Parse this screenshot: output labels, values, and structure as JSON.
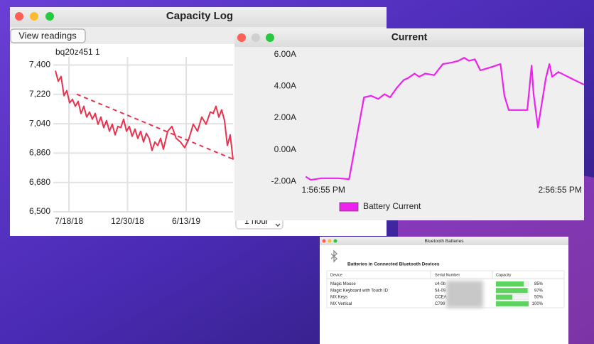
{
  "capacity_log": {
    "title": "Capacity Log",
    "button": "View readings",
    "popup": "1 hour",
    "chart_data": {
      "type": "line",
      "series": [
        {
          "name": "bq20z451 1",
          "color": "#e8334f",
          "x": [
            -38,
            -30,
            -22,
            -14,
            -6,
            2,
            10,
            18,
            26,
            34,
            42,
            50,
            58,
            66,
            74,
            82,
            90,
            98,
            106,
            114,
            122,
            130,
            138,
            146,
            154,
            162,
            170,
            178,
            186,
            194,
            202,
            210,
            218,
            226,
            234,
            242,
            250,
            258,
            266,
            278,
            290,
            302,
            314,
            326,
            338,
            350,
            362,
            374,
            386,
            398,
            406,
            414,
            422,
            430,
            438,
            446,
            454,
            462
          ],
          "values": [
            7365,
            7300,
            7330,
            7212,
            7243,
            7168,
            7190,
            7147,
            7177,
            7103,
            7147,
            7081,
            7112,
            7068,
            7103,
            7037,
            7081,
            7016,
            7059,
            6994,
            7037,
            6972,
            7024,
            7016,
            7068,
            6994,
            7024,
            6963,
            7007,
            6950,
            6994,
            6928,
            6981,
            6950,
            6876,
            6928,
            6906,
            6950,
            6884,
            6994,
            7024,
            6950,
            6928,
            6893,
            6950,
            7037,
            6994,
            7081,
            7037,
            7112,
            7103,
            7147,
            7081,
            7125,
            7059,
            6906,
            6972,
            6819
          ]
        }
      ],
      "trend_line": {
        "x": [
          22,
          462
        ],
        "values": [
          7221,
          6823
        ]
      },
      "xlim": [
        -44,
        462
      ],
      "xticks": [
        {
          "value": 0,
          "label": "7/18/18"
        },
        {
          "value": 165,
          "label": "12/30/18"
        },
        {
          "value": 330,
          "label": "6/13/19"
        }
      ],
      "ylim": [
        6500,
        7450
      ],
      "yticks": [
        {
          "value": 6500,
          "label": "6,500"
        },
        {
          "value": 6680,
          "label": "6,680"
        },
        {
          "value": 6860,
          "label": "6,860"
        },
        {
          "value": 7040,
          "label": "7,040"
        },
        {
          "value": 7220,
          "label": "7,220"
        },
        {
          "value": 7400,
          "label": "7,400"
        }
      ],
      "grid": true
    }
  },
  "current": {
    "title": "Current",
    "chart_data": {
      "type": "line",
      "series": [
        {
          "name": "Battery Current",
          "color": "#ee22ee",
          "x": [
            -4.5,
            -3.2,
            -0.5,
            3.8,
            6.5,
            10.3,
            12.1,
            13.9,
            15.5,
            16.9,
            18.6,
            20.4,
            21.4,
            23.1,
            24.3,
            25.8,
            28.1,
            30.3,
            32.6,
            34.2,
            35.7,
            36.9,
            38.4,
            39.8,
            42.5,
            44.9,
            45.9,
            47.0,
            51.7,
            52.8,
            53.3,
            54.4,
            56.4,
            57.3,
            58.0,
            59.6,
            63.6,
            66.1
          ],
          "values": [
            -1.7,
            -1.9,
            -1.8,
            -1.8,
            -1.85,
            3.3,
            3.4,
            3.2,
            3.5,
            3.3,
            3.9,
            4.4,
            4.5,
            4.8,
            4.6,
            4.8,
            4.7,
            5.4,
            5.5,
            5.6,
            5.8,
            5.6,
            5.7,
            5.0,
            5.2,
            5.4,
            3.4,
            2.5,
            2.5,
            5.3,
            3.5,
            1.4,
            4.5,
            5.4,
            4.6,
            4.9,
            4.4,
            4.1
          ]
        }
      ],
      "xlim": [
        -4.9,
        66.1
      ],
      "xticks": [
        {
          "value": 0,
          "label": "1:56:55 PM"
        },
        {
          "value": 60,
          "label": "2:56:55 PM"
        }
      ],
      "ylim": [
        -2.3,
        6.3
      ],
      "yticks": [
        {
          "value": -2,
          "label": "-2.00A"
        },
        {
          "value": 0,
          "label": "0.00A"
        },
        {
          "value": 2,
          "label": "2.00A"
        },
        {
          "value": 4,
          "label": "4.00A"
        },
        {
          "value": 6,
          "label": "6.00A"
        }
      ]
    }
  },
  "bluetooth": {
    "title": "Bluetooth Batteries",
    "heading": "Batteries in Connected Bluetooth Devices",
    "table": {
      "columns": [
        "Device",
        "Serial Number",
        "Capacity"
      ],
      "rows": [
        [
          "Magic Mouse",
          "c4-0b"
        ],
        [
          "Magic Keyboard with Touch ID",
          "54-09"
        ],
        [
          "MX Keys",
          "CCEA"
        ],
        [
          "MX Vertical",
          "C799"
        ]
      ],
      "chart_data": {
        "type": "bar",
        "color": "#5fd35f",
        "values": [
          85,
          97,
          50,
          100
        ],
        "value_labels": [
          "85%",
          "97%",
          "50%",
          "100%"
        ],
        "xlim": [
          0,
          100
        ]
      }
    }
  }
}
